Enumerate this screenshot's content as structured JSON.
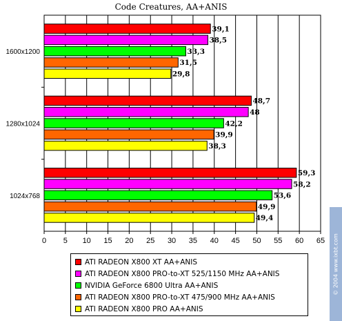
{
  "chart_data": {
    "type": "bar",
    "orientation": "horizontal",
    "title": "Code Creatures, AA+ANIS",
    "categories": [
      "1600x1200",
      "1280x1024",
      "1024x768"
    ],
    "series": [
      {
        "name": "ATI RADEON X800 XT AA+ANIS",
        "color": "#ff0000",
        "values": [
          39.1,
          48.7,
          59.3
        ],
        "labels": [
          "39,1",
          "48,7",
          "59,3"
        ]
      },
      {
        "name": "ATI RADEON X800 PRO-to-XT 525/1150 MHz AA+ANIS",
        "color": "#ff00ff",
        "values": [
          38.5,
          48,
          58.2
        ],
        "labels": [
          "38,5",
          "48",
          "58,2"
        ]
      },
      {
        "name": "NVIDIA GeForce 6800 Ultra AA+ANIS",
        "color": "#00ff00",
        "values": [
          33.3,
          42.2,
          53.6
        ],
        "labels": [
          "33,3",
          "42,2",
          "53,6"
        ]
      },
      {
        "name": "ATI RADEON X800 PRO-to-XT 475/900 MHz AA+ANIS",
        "color": "#ff6600",
        "values": [
          31.5,
          39.9,
          49.9
        ],
        "labels": [
          "31,5",
          "39,9",
          "49,9"
        ]
      },
      {
        "name": "ATI RADEON X800 PRO AA+ANIS",
        "color": "#ffff00",
        "values": [
          29.8,
          38.3,
          49.4
        ],
        "labels": [
          "29,8",
          "38,3",
          "49,4"
        ]
      }
    ],
    "xlim": [
      0,
      65
    ],
    "xticks": [
      "0",
      "5",
      "10",
      "15",
      "20",
      "25",
      "30",
      "35",
      "40",
      "45",
      "50",
      "55",
      "60",
      "65"
    ],
    "grid": true,
    "legend_position": "bottom"
  },
  "watermark": "© 2004 www.ixbt.com"
}
